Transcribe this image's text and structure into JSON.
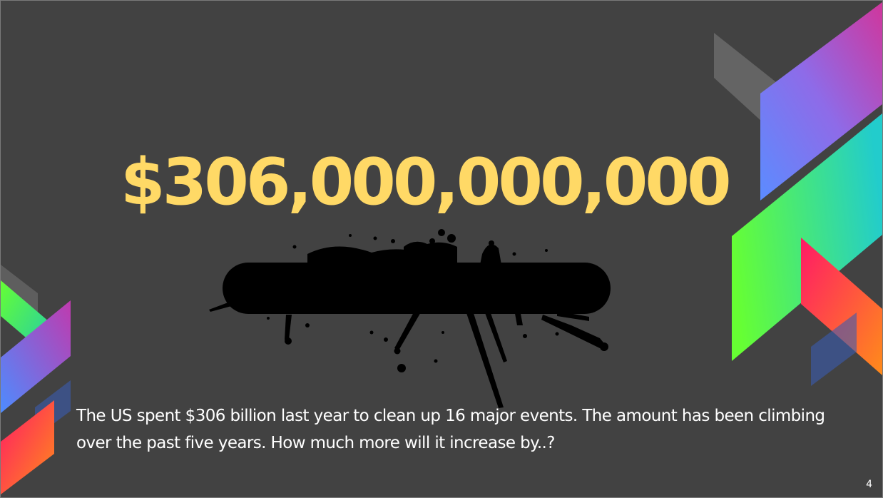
{
  "slide": {
    "headline": "$306,000,000,000",
    "body": "The US spent $306 billion last year to clean up 16 major events. The amount has been climbing over the past five years. How much more will it increase by..?",
    "number": "4"
  },
  "colors": {
    "background": "#424242",
    "headline": "#FFD966",
    "text": "#FFFFFF",
    "redaction": "#000000"
  }
}
